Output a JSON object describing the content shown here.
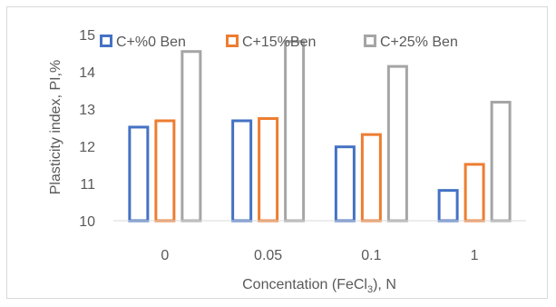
{
  "chart_data": {
    "type": "bar",
    "categories": [
      "0",
      "0.05",
      "0.1",
      "1"
    ],
    "series": [
      {
        "name": "C+%0 Ben",
        "values": [
          12.55,
          12.72,
          12.02,
          10.85
        ],
        "color": "#4472c4"
      },
      {
        "name": "C+15%Ben",
        "values": [
          12.72,
          12.78,
          12.35,
          11.55
        ],
        "color": "#ed7d31"
      },
      {
        "name": "C+25% Ben",
        "values": [
          14.58,
          14.85,
          14.18,
          13.22
        ],
        "color": "#a5a5a5"
      }
    ],
    "ylim": [
      10,
      15
    ],
    "yticks": [
      "10",
      "11",
      "12",
      "13",
      "14",
      "15"
    ],
    "xlabel": {
      "main": "Concentation (FeCl",
      "subscript": "3",
      "tail": "), N"
    },
    "ylabel": "Plasticity index, PI,%",
    "grid": false,
    "legend": "top"
  }
}
